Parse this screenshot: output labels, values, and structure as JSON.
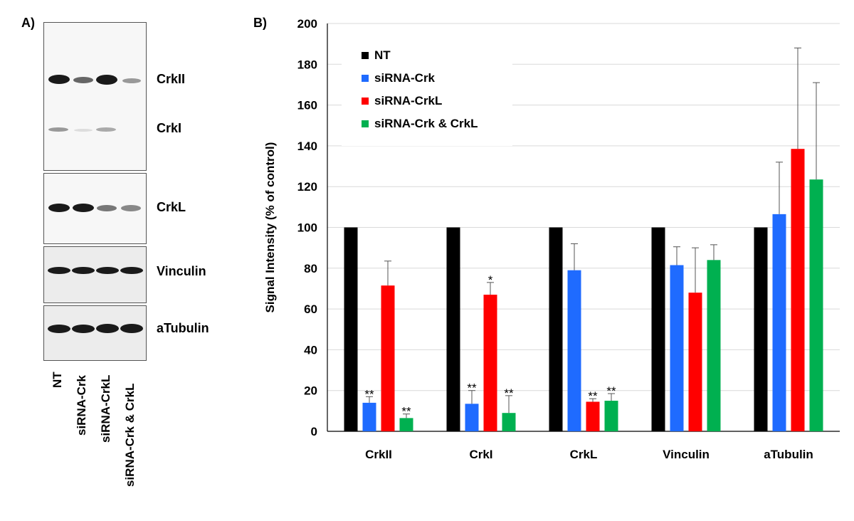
{
  "panel_a": {
    "label": "A)",
    "blots": [
      {
        "name": "CrkII",
        "label": "CrkII"
      },
      {
        "name": "CrkI",
        "label": "CrkI"
      },
      {
        "name": "CrkL",
        "label": "CrkL"
      },
      {
        "name": "Vinculin",
        "label": "Vinculin"
      },
      {
        "name": "aTubulin",
        "label": "aTubulin"
      }
    ],
    "lanes": [
      "NT",
      "siRNA-Crk",
      "siRNA-CrkL",
      "siRNA-Crk & CrkL"
    ]
  },
  "panel_b": {
    "label": "B)"
  },
  "chart_data": {
    "type": "bar",
    "title": "",
    "xlabel": "",
    "ylabel": "Signal Intensity (% of control)",
    "ylim": [
      0,
      200
    ],
    "yticks": [
      0,
      20,
      40,
      60,
      80,
      100,
      120,
      140,
      160,
      180,
      200
    ],
    "grid": true,
    "legend_position": "top-left",
    "categories": [
      "CrkII",
      "CrkI",
      "CrkL",
      "Vinculin",
      "aTubulin"
    ],
    "series": [
      {
        "name": "NT",
        "color": "#000000",
        "values": [
          100,
          100,
          100,
          100,
          100
        ],
        "errors": [
          0,
          0,
          0,
          0,
          0
        ],
        "stars": [
          "",
          "",
          "",
          "",
          ""
        ]
      },
      {
        "name": "siRNA-Crk",
        "color": "#1f6bff",
        "values": [
          14,
          13.5,
          79,
          81.5,
          106.5
        ],
        "errors": [
          3,
          6.5,
          13,
          9,
          25.5
        ],
        "stars": [
          "**",
          "**",
          "",
          "",
          ""
        ]
      },
      {
        "name": "siRNA-CrkL",
        "color": "#ff0000",
        "values": [
          71.5,
          67,
          14.5,
          68,
          138.5
        ],
        "errors": [
          12,
          6,
          1.5,
          22,
          49.5
        ],
        "stars": [
          "",
          "*",
          "**",
          "",
          ""
        ]
      },
      {
        "name": "siRNA-Crk & CrkL",
        "color": "#00b050",
        "values": [
          6.5,
          9,
          15,
          84,
          123.5
        ],
        "errors": [
          2,
          8.5,
          3.5,
          7.5,
          47.5
        ],
        "stars": [
          "**",
          "**",
          "**",
          "",
          ""
        ]
      }
    ]
  }
}
